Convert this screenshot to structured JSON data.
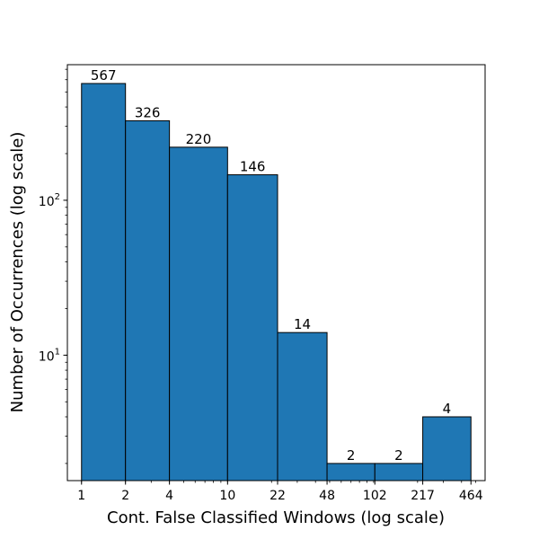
{
  "chart_data": {
    "type": "bar",
    "xlabel": "Cont. False Classified Windows (log scale)",
    "ylabel": "Number of Occurrences (log scale)",
    "x_scale": "log",
    "y_scale": "log",
    "bin_edges": [
      1,
      2,
      4,
      10,
      22,
      48,
      102,
      217,
      464
    ],
    "x_tick_labels": [
      "1",
      "2",
      "4",
      "10",
      "22",
      "48",
      "102",
      "217",
      "464"
    ],
    "values": [
      567,
      326,
      220,
      146,
      14,
      2,
      2,
      4
    ],
    "value_labels": [
      "567",
      "326",
      "220",
      "146",
      "14",
      "2",
      "2",
      "4"
    ],
    "xlim": [
      0.8,
      580
    ],
    "ylim": [
      1.55,
      750
    ],
    "y_major_ticks": [
      {
        "value": 10,
        "base": "10",
        "exp": "1"
      },
      {
        "value": 100,
        "base": "10",
        "exp": "2"
      }
    ],
    "bar_color": "#1f77b4",
    "edge_color": "#000000",
    "grid": false
  }
}
